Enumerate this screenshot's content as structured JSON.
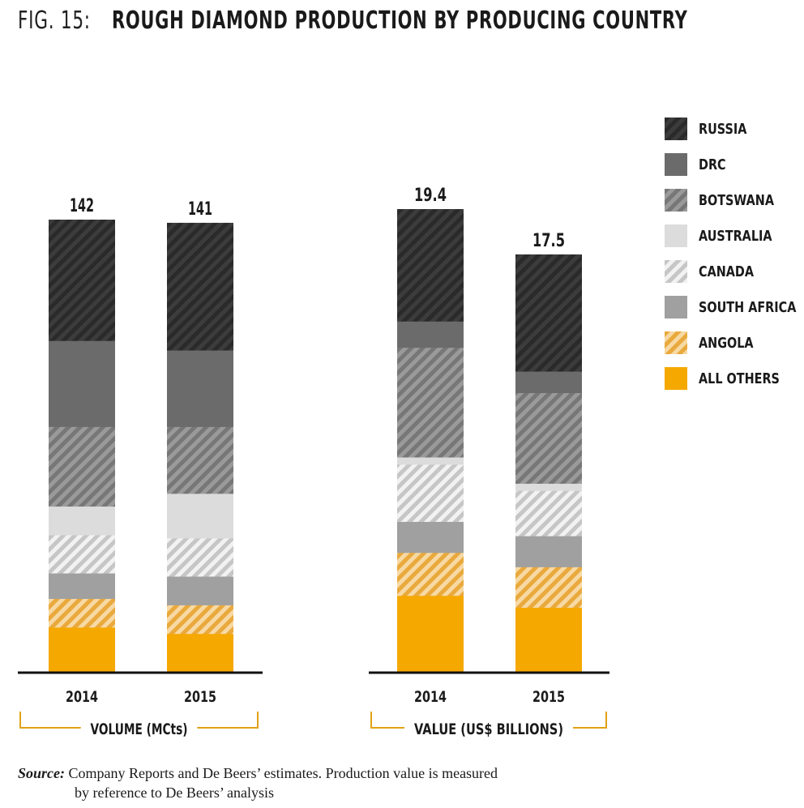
{
  "figure": {
    "label": "FIG. 15:",
    "title": "ROUGH DIAMOND PRODUCTION BY PRODUCING COUNTRY"
  },
  "legend": [
    {
      "name": "RUSSIA",
      "color": "#3a3a3a",
      "pattern": "hatch-dark"
    },
    {
      "name": "DRC",
      "color": "#6b6b6b",
      "pattern": "solid"
    },
    {
      "name": "BOTSWANA",
      "color": "#8a8a8a",
      "pattern": "hatch-mid"
    },
    {
      "name": "AUSTRALIA",
      "color": "#dcdcdc",
      "pattern": "solid"
    },
    {
      "name": "CANADA",
      "color": "#e6e6e6",
      "pattern": "hatch-light"
    },
    {
      "name": "SOUTH AFRICA",
      "color": "#a0a0a0",
      "pattern": "solid"
    },
    {
      "name": "ANGOLA",
      "color": "#f0c070",
      "pattern": "hatch-orange"
    },
    {
      "name": "ALL OTHERS",
      "color": "#f5a800",
      "pattern": "solid"
    }
  ],
  "chart_data": [
    {
      "type": "bar",
      "stacked": true,
      "group_label": "VOLUME (MCts)",
      "categories": [
        "2014",
        "2015"
      ],
      "totals": [
        "142",
        "141"
      ],
      "ylim": [
        0,
        142
      ],
      "series": [
        {
          "name": "ALL OTHERS",
          "values": [
            14,
            12
          ]
        },
        {
          "name": "ANGOLA",
          "values": [
            9,
            9
          ]
        },
        {
          "name": "SOUTH AFRICA",
          "values": [
            8,
            9
          ]
        },
        {
          "name": "CANADA",
          "values": [
            12,
            12
          ]
        },
        {
          "name": "AUSTRALIA",
          "values": [
            9,
            14
          ]
        },
        {
          "name": "BOTSWANA",
          "values": [
            25,
            21
          ]
        },
        {
          "name": "DRC",
          "values": [
            27,
            24
          ]
        },
        {
          "name": "RUSSIA",
          "values": [
            38,
            40
          ]
        }
      ]
    },
    {
      "type": "bar",
      "stacked": true,
      "group_label": "VALUE (US$ BILLIONS)",
      "categories": [
        "2014",
        "2015"
      ],
      "totals": [
        "19.4",
        "17.5"
      ],
      "ylim": [
        0,
        19.4
      ],
      "series": [
        {
          "name": "ALL OTHERS",
          "values": [
            3.2,
            2.7
          ]
        },
        {
          "name": "ANGOLA",
          "values": [
            1.8,
            1.7
          ]
        },
        {
          "name": "SOUTH AFRICA",
          "values": [
            1.3,
            1.3
          ]
        },
        {
          "name": "CANADA",
          "values": [
            2.4,
            1.9
          ]
        },
        {
          "name": "AUSTRALIA",
          "values": [
            0.3,
            0.3
          ]
        },
        {
          "name": "BOTSWANA",
          "values": [
            4.6,
            3.8
          ]
        },
        {
          "name": "DRC",
          "values": [
            1.1,
            0.9
          ]
        },
        {
          "name": "RUSSIA",
          "values": [
            4.7,
            4.9
          ]
        }
      ]
    }
  ],
  "source": {
    "label": "Source:",
    "line1": " Company Reports and De Beers’ estimates. Production value is measured",
    "line2": "by reference to De Beers’ analysis"
  }
}
